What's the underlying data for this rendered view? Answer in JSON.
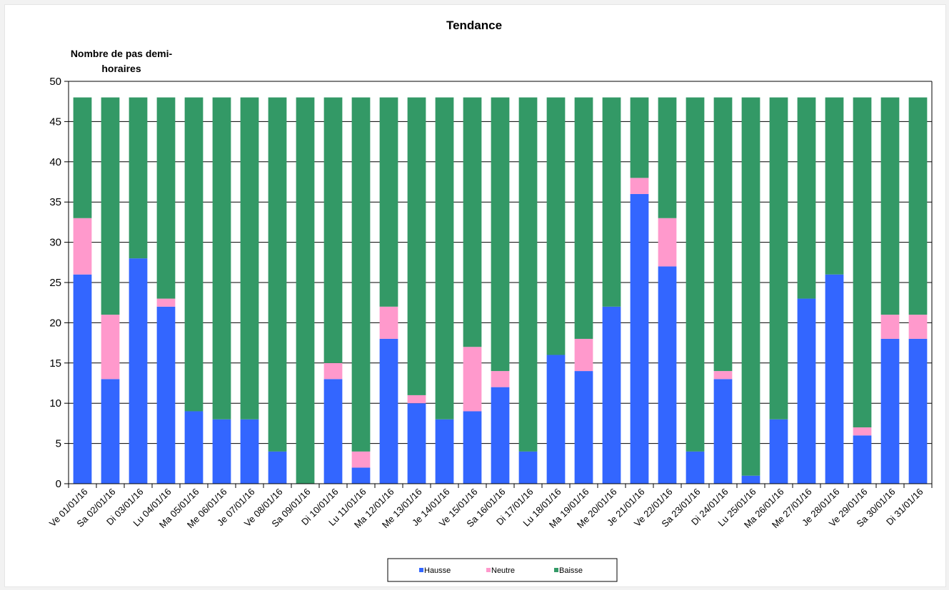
{
  "chart_data": {
    "type": "bar",
    "stacked": true,
    "title": "Tendance",
    "ylabel_lines": [
      "Nombre de pas demi-",
      "horaires"
    ],
    "xlabel": "",
    "ylim": [
      0,
      50
    ],
    "yticks": [
      0,
      5,
      10,
      15,
      20,
      25,
      30,
      35,
      40,
      45,
      50
    ],
    "grid": true,
    "legend_position": "bottom",
    "categories": [
      "Ve 01/01/16",
      "Sa 02/01/16",
      "Di 03/01/16",
      "Lu 04/01/16",
      "Ma 05/01/16",
      "Me 06/01/16",
      "Je 07/01/16",
      "Ve 08/01/16",
      "Sa 09/01/16",
      "Di 10/01/16",
      "Lu 11/01/16",
      "Ma 12/01/16",
      "Me 13/01/16",
      "Je 14/01/16",
      "Ve 15/01/16",
      "Sa 16/01/16",
      "Di 17/01/16",
      "Lu 18/01/16",
      "Ma 19/01/16",
      "Me 20/01/16",
      "Je 21/01/16",
      "Ve 22/01/16",
      "Sa 23/01/16",
      "Di 24/01/16",
      "Lu 25/01/16",
      "Ma 26/01/16",
      "Me 27/01/16",
      "Je 28/01/16",
      "Ve 29/01/16",
      "Sa 30/01/16",
      "Di 31/01/16"
    ],
    "series": [
      {
        "name": "Hausse",
        "color": "#3366ff",
        "values": [
          26,
          13,
          28,
          22,
          9,
          8,
          8,
          4,
          0,
          13,
          2,
          18,
          10,
          8,
          9,
          12,
          4,
          16,
          14,
          22,
          36,
          27,
          4,
          13,
          1,
          8,
          23,
          26,
          6,
          18,
          18
        ]
      },
      {
        "name": "Neutre",
        "color": "#ff99cc",
        "values": [
          7,
          8,
          0,
          1,
          0,
          0,
          0,
          0,
          0,
          2,
          2,
          4,
          1,
          0,
          8,
          2,
          0,
          0,
          4,
          0,
          2,
          6,
          0,
          1,
          0,
          0,
          0,
          0,
          1,
          3,
          3
        ]
      },
      {
        "name": "Baisse",
        "color": "#339966",
        "values": [
          15,
          27,
          20,
          25,
          39,
          40,
          40,
          44,
          48,
          33,
          44,
          26,
          37,
          40,
          31,
          34,
          44,
          32,
          30,
          26,
          10,
          15,
          44,
          34,
          47,
          40,
          25,
          22,
          41,
          27,
          27
        ]
      }
    ]
  }
}
